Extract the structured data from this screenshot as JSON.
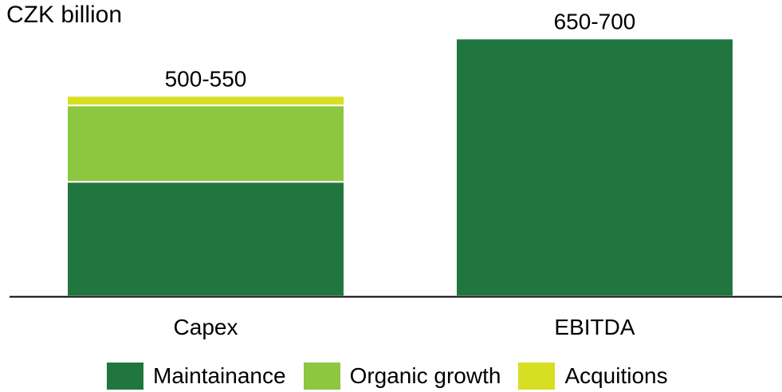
{
  "chart_data": {
    "type": "bar",
    "stacked": true,
    "unit_label": "CZK billion",
    "categories": [
      "Capex",
      "EBITDA"
    ],
    "totals_labels": [
      "500-550",
      "650-700"
    ],
    "series": [
      {
        "name": "Maintainance",
        "color": "#217640",
        "values": [
          300,
          675
        ]
      },
      {
        "name": "Organic growth",
        "color": "#8dc63f",
        "values": [
          200,
          0
        ]
      },
      {
        "name": "Acquitions",
        "color": "#d7df23",
        "values": [
          25,
          0
        ]
      }
    ],
    "ylim": [
      0,
      680
    ],
    "grid": false,
    "legend_position": "bottom"
  }
}
